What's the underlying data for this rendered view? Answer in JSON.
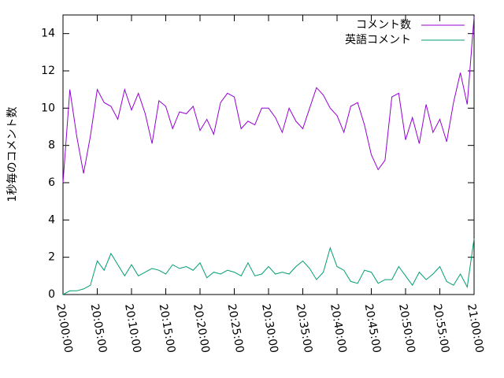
{
  "chart_data": {
    "type": "line",
    "ylabel": "1秒毎のコメント数",
    "x": [
      "20:00:00",
      "20:01:00",
      "20:02:00",
      "20:03:00",
      "20:04:00",
      "20:05:00",
      "20:06:00",
      "20:07:00",
      "20:08:00",
      "20:09:00",
      "20:10:00",
      "20:11:00",
      "20:12:00",
      "20:13:00",
      "20:14:00",
      "20:15:00",
      "20:16:00",
      "20:17:00",
      "20:18:00",
      "20:19:00",
      "20:20:00",
      "20:21:00",
      "20:22:00",
      "20:23:00",
      "20:24:00",
      "20:25:00",
      "20:26:00",
      "20:27:00",
      "20:28:00",
      "20:29:00",
      "20:30:00",
      "20:31:00",
      "20:32:00",
      "20:33:00",
      "20:34:00",
      "20:35:00",
      "20:36:00",
      "20:37:00",
      "20:38:00",
      "20:39:00",
      "20:40:00",
      "20:41:00",
      "20:42:00",
      "20:43:00",
      "20:44:00",
      "20:45:00",
      "20:46:00",
      "20:47:00",
      "20:48:00",
      "20:49:00",
      "20:50:00",
      "20:51:00",
      "20:52:00",
      "20:53:00",
      "20:54:00",
      "20:55:00",
      "20:56:00",
      "20:57:00",
      "20:58:00",
      "20:59:00",
      "21:00:00"
    ],
    "series": [
      {
        "name": "コメント数",
        "color": "#9400d3",
        "values": [
          6.0,
          11.0,
          8.5,
          6.5,
          8.5,
          11.0,
          10.3,
          10.1,
          9.4,
          11.0,
          9.9,
          10.8,
          9.7,
          8.1,
          10.4,
          10.1,
          8.9,
          9.8,
          9.7,
          10.1,
          8.8,
          9.4,
          8.6,
          10.3,
          10.8,
          10.6,
          8.9,
          9.3,
          9.1,
          10.0,
          10.0,
          9.5,
          8.7,
          10.0,
          9.3,
          8.9,
          10.0,
          11.1,
          10.7,
          10.0,
          9.6,
          8.7,
          10.1,
          10.3,
          9.1,
          7.5,
          6.7,
          7.2,
          10.6,
          10.8,
          8.3,
          9.5,
          8.1,
          10.2,
          8.7,
          9.4,
          8.2,
          10.3,
          11.9,
          10.2,
          14.9
        ]
      },
      {
        "name": "英語コメント",
        "color": "#009e73",
        "values": [
          0,
          0.2,
          0.2,
          0.3,
          0.5,
          1.8,
          1.3,
          2.2,
          1.6,
          1.0,
          1.6,
          1.0,
          1.2,
          1.4,
          1.3,
          1.1,
          1.6,
          1.4,
          1.5,
          1.3,
          1.7,
          0.9,
          1.2,
          1.1,
          1.3,
          1.2,
          1.0,
          1.7,
          1.0,
          1.1,
          1.5,
          1.1,
          1.2,
          1.1,
          1.5,
          1.8,
          1.4,
          0.8,
          1.2,
          2.5,
          1.5,
          1.3,
          0.7,
          0.6,
          1.3,
          1.2,
          0.6,
          0.8,
          0.8,
          1.5,
          1.0,
          0.5,
          1.2,
          0.8,
          1.1,
          1.5,
          0.7,
          0.5,
          1.1,
          0.4,
          3.0
        ]
      }
    ],
    "xlim": [
      "20:00:00",
      "21:00:00"
    ],
    "xticks": [
      "20:00:00",
      "20:05:00",
      "20:10:00",
      "20:15:00",
      "20:20:00",
      "20:25:00",
      "20:30:00",
      "20:35:00",
      "20:40:00",
      "20:45:00",
      "20:50:00",
      "20:55:00",
      "21:00:00"
    ],
    "ylim": [
      0,
      15
    ],
    "yticks": [
      0,
      2,
      4,
      6,
      8,
      10,
      12,
      14
    ],
    "legend": "top-right"
  }
}
